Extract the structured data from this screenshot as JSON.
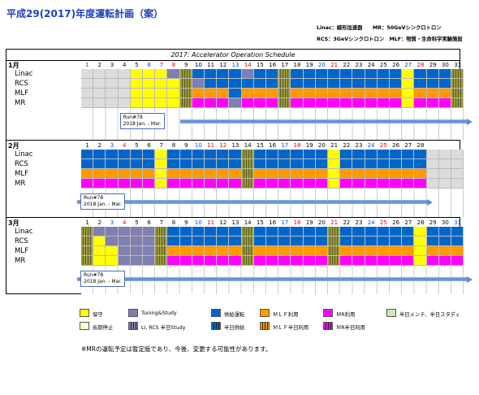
{
  "title": "平成29(2017)年度運転計画（案）",
  "legend_top": [
    "Linac：線形加速器　　MR：50GeVシンクロトロン",
    "RCS：3GeVシンクロトロン　MLF：物質・生命科学実験施設"
  ],
  "chart_title": "2017: Accelerator Operation Schedule",
  "row_names": [
    "Linac",
    "RCS",
    "MLF",
    "MR"
  ],
  "colors": {
    "maint": "#ffff00",
    "long_stop": "#ffffcc",
    "tuning": "#7f7fb2",
    "supply": "#0066cc",
    "mlf": "#ff9900",
    "mr": "#ff00ff",
    "half": "#9b9b3c",
    "hatch_dark": "#5a5a20",
    "empty": "#dcdcdc"
  },
  "months": [
    {
      "label": "1月",
      "days": 31,
      "run_label": "Run#78",
      "run_dates": "2018 Jan. - Mar."
    },
    {
      "label": "2月",
      "days": 28,
      "run_label": "Run#78",
      "run_dates": "2018 Jan. - Mar."
    },
    {
      "label": "3月",
      "days": 31,
      "run_label": "Run#78",
      "run_dates": "2018 Jan. - Mar."
    }
  ],
  "legend_bottom": [
    {
      "label": "保守",
      "color": "#ffff00"
    },
    {
      "label": "長期停止",
      "color": "#ffffcc"
    },
    {
      "label": "Tuning&Study",
      "color": "#7f7fb2"
    },
    {
      "label": "Li, RCS 半日Study",
      "color": "#7f7fb2"
    },
    {
      "label": "供給運転",
      "color": "#0066cc"
    },
    {
      "label": "半日供給",
      "color": "#0066cc"
    },
    {
      "label": "ＭＬＦ利用",
      "color": "#ff9900"
    },
    {
      "label": "ＭＬＦ半日利用",
      "color": "#ff9900"
    },
    {
      "label": "ＭR利用",
      "color": "#ff00ff"
    },
    {
      "label": "ＭR半日利用",
      "color": "#ff00ff"
    },
    {
      "label": "半日メンテ、半日スタディ",
      "color": "#cce6b3"
    }
  ],
  "note": "※MRの運転予定は暫定版であり、今後、変更する可能性があります。"
}
